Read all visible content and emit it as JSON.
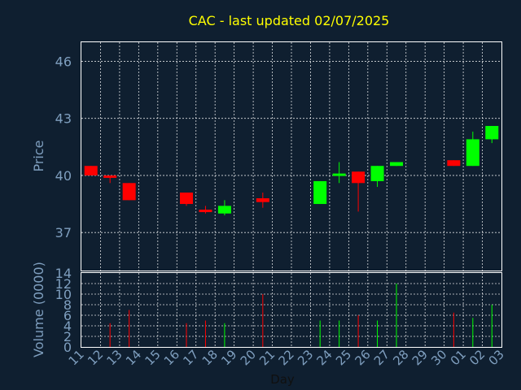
{
  "chart_data": {
    "type": "candlestick",
    "title": "CAC - last updated 02/07/2025",
    "xlabel": "Day",
    "price_axis": {
      "label": "Price",
      "ylim": [
        35,
        47
      ],
      "ticks": [
        37,
        40,
        43,
        46
      ]
    },
    "volume_axis": {
      "label": "Volume (0000)",
      "ylim": [
        0,
        14
      ],
      "ticks": [
        0,
        2,
        4,
        6,
        8,
        10,
        12,
        14
      ]
    },
    "x_ticks": [
      "11",
      "12",
      "13",
      "14",
      "15",
      "16",
      "17",
      "18",
      "19",
      "20",
      "21",
      "22",
      "23",
      "24",
      "25",
      "26",
      "27",
      "28",
      "29",
      "30",
      "01",
      "02",
      "03"
    ],
    "grid": true,
    "colors": {
      "background": "#0f1f30",
      "up": "#00ff00",
      "down": "#ff0000",
      "title": "#ffff00",
      "axis_text": "#7f9fbf",
      "grid": "#ffffff"
    },
    "candles": [
      {
        "day": "11",
        "open": 40.5,
        "high": 40.5,
        "low": 40.0,
        "close": 40.0
      },
      {
        "day": "12",
        "open": 40.0,
        "high": 40.0,
        "low": 39.6,
        "close": 39.9
      },
      {
        "day": "13",
        "open": 39.6,
        "high": 39.6,
        "low": 38.7,
        "close": 38.7
      },
      {
        "day": "16",
        "open": 39.1,
        "high": 39.1,
        "low": 38.4,
        "close": 38.5
      },
      {
        "day": "17",
        "open": 38.2,
        "high": 38.4,
        "low": 38.0,
        "close": 38.1
      },
      {
        "day": "18",
        "open": 38.0,
        "high": 38.7,
        "low": 37.9,
        "close": 38.4
      },
      {
        "day": "20",
        "open": 38.8,
        "high": 39.1,
        "low": 38.3,
        "close": 38.6
      },
      {
        "day": "23",
        "open": 38.5,
        "high": 39.7,
        "low": 38.5,
        "close": 39.7
      },
      {
        "day": "24",
        "open": 40.0,
        "high": 40.7,
        "low": 39.6,
        "close": 40.1
      },
      {
        "day": "25",
        "open": 40.2,
        "high": 40.2,
        "low": 38.1,
        "close": 39.6
      },
      {
        "day": "26",
        "open": 39.7,
        "high": 40.5,
        "low": 39.4,
        "close": 40.5
      },
      {
        "day": "27",
        "open": 40.5,
        "high": 40.7,
        "low": 40.5,
        "close": 40.7
      },
      {
        "day": "30",
        "open": 40.8,
        "high": 40.8,
        "low": 40.5,
        "close": 40.5
      },
      {
        "day": "01",
        "open": 40.5,
        "high": 42.3,
        "low": 40.5,
        "close": 41.9
      },
      {
        "day": "02",
        "open": 41.9,
        "high": 42.6,
        "low": 41.7,
        "close": 42.6
      }
    ],
    "volume": [
      {
        "day": "12",
        "value": 4.5,
        "dir": "down"
      },
      {
        "day": "13",
        "value": 7.0,
        "dir": "down"
      },
      {
        "day": "16",
        "value": 4.5,
        "dir": "down"
      },
      {
        "day": "17",
        "value": 5.0,
        "dir": "down"
      },
      {
        "day": "18",
        "value": 4.5,
        "dir": "up"
      },
      {
        "day": "20",
        "value": 10.0,
        "dir": "down"
      },
      {
        "day": "23",
        "value": 5.0,
        "dir": "up"
      },
      {
        "day": "24",
        "value": 5.0,
        "dir": "up"
      },
      {
        "day": "25",
        "value": 6.0,
        "dir": "down"
      },
      {
        "day": "26",
        "value": 5.0,
        "dir": "up"
      },
      {
        "day": "27",
        "value": 12.0,
        "dir": "up"
      },
      {
        "day": "30",
        "value": 6.5,
        "dir": "down"
      },
      {
        "day": "01",
        "value": 5.5,
        "dir": "up"
      },
      {
        "day": "02",
        "value": 8.0,
        "dir": "up"
      }
    ]
  }
}
